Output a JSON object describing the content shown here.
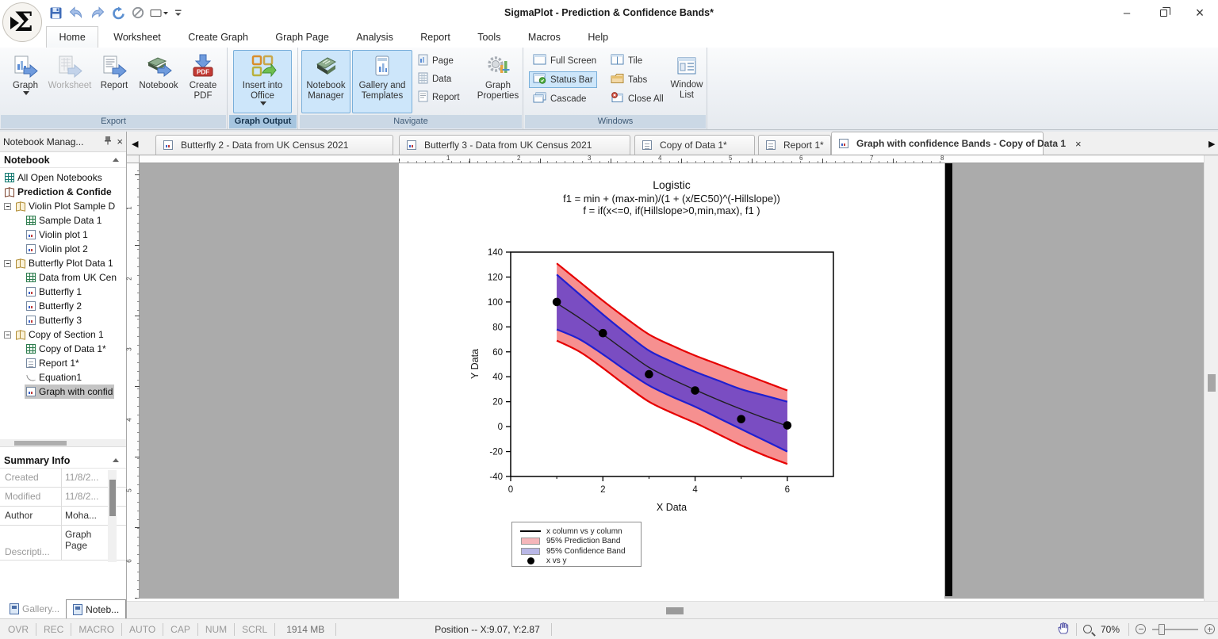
{
  "titlebar": {
    "title": "SigmaPlot - Prediction & Confidence Bands*"
  },
  "icons": {
    "minimize": "–",
    "close": "×",
    "back": "◀",
    "forward": "▶",
    "logo": "Σ",
    "tab_close": "×"
  },
  "ribbon": {
    "tabs": [
      "Home",
      "Worksheet",
      "Create Graph",
      "Graph Page",
      "Analysis",
      "Report",
      "Tools",
      "Macros",
      "Help"
    ],
    "export": {
      "label": "Export",
      "graph": "Graph",
      "worksheet": "Worksheet",
      "report": "Report",
      "notebook": "Notebook",
      "create_pdf": "Create PDF"
    },
    "graph_output": {
      "label": "Graph Output",
      "insert_into_office": "Insert into Office"
    },
    "navigate": {
      "label": "Navigate",
      "notebook_manager": "Notebook Manager",
      "gallery": "Gallery and Templates",
      "page": "Page",
      "data": "Data",
      "report": "Report",
      "graph_properties": "Graph Properties"
    },
    "windows": {
      "label": "Windows",
      "full_screen": "Full Screen",
      "tile": "Tile",
      "status_bar": "Status Bar",
      "tabs": "Tabs",
      "cascade": "Cascade",
      "close_all": "Close All",
      "window_list": "Window List"
    }
  },
  "doc_tabs": [
    "Butterfly 2 - Data from UK Census 2021",
    "Butterfly 3 - Data from UK Census 2021",
    "Copy of Data 1*",
    "Report 1*",
    "Graph with confidence Bands - Copy of Data 1"
  ],
  "notebook_panel": {
    "title": "Notebook Manag...",
    "section": "Notebook",
    "items": [
      {
        "label": "All Open Notebooks"
      },
      {
        "label": "Prediction & Confide"
      },
      {
        "label": "Violin Plot Sample D"
      },
      {
        "label": "Sample Data 1"
      },
      {
        "label": "Violin plot 1"
      },
      {
        "label": "Violin plot 2"
      },
      {
        "label": "Butterfly Plot Data 1"
      },
      {
        "label": "Data from UK Cen"
      },
      {
        "label": "Butterfly 1"
      },
      {
        "label": "Butterfly 2"
      },
      {
        "label": "Butterfly 3"
      },
      {
        "label": "Copy of Section 1"
      },
      {
        "label": "Copy of Data 1*"
      },
      {
        "label": "Report 1*"
      },
      {
        "label": "Equation1"
      },
      {
        "label": "Graph with confid"
      }
    ]
  },
  "summary_info": {
    "title": "Summary Info",
    "rows": [
      {
        "label": "Created",
        "value": "11/8/2..."
      },
      {
        "label": "Modified",
        "value": "11/8/2..."
      },
      {
        "label": "Author",
        "value": "Moha..."
      },
      {
        "label": "Descripti...",
        "value": "Graph Page"
      }
    ]
  },
  "panel_tabs": {
    "gallery": "Gallery...",
    "notebook": "Noteb..."
  },
  "ruler": {
    "h_numbers": [
      "1",
      "2",
      "3",
      "4",
      "5",
      "6",
      "7",
      "8"
    ],
    "v_numbers": [
      "1",
      "2",
      "3",
      "4",
      "5",
      "6"
    ]
  },
  "status_bar": {
    "toggles": [
      "OVR",
      "REC",
      "MACRO",
      "AUTO",
      "CAP",
      "NUM",
      "SCRL"
    ],
    "memory": "1914 MB",
    "position": "Position -- X:9.07, Y:2.87",
    "zoom": "70%"
  },
  "chart_data": {
    "type": "line",
    "title": "Logistic",
    "eq1": "f1 = min + (max-min)/(1 + (x/EC50)^(-Hillslope))",
    "eq2": "f = if(x<=0, if(Hillslope>0,min,max), f1 )",
    "xlabel": "X Data",
    "ylabel": "Y Data",
    "xlim": [
      0,
      7
    ],
    "ylim": [
      -40,
      140
    ],
    "xticks": [
      0,
      2,
      4,
      6
    ],
    "xminor": [
      1,
      3,
      5
    ],
    "yticks": [
      -40,
      -20,
      0,
      20,
      40,
      60,
      80,
      100,
      120,
      140
    ],
    "grid": false,
    "legend_position": "bottom-left",
    "points": {
      "x": [
        1,
        2,
        3,
        4,
        5,
        6
      ],
      "y": [
        100,
        75,
        42,
        29,
        6,
        1
      ]
    },
    "band_x": [
      1,
      1.5,
      2,
      2.5,
      3,
      3.5,
      4,
      4.5,
      5,
      5.5,
      6
    ],
    "fit": [
      99,
      87,
      74,
      60.5,
      47.5,
      38,
      29.5,
      21.5,
      14,
      7,
      0.5
    ],
    "conf_upper": [
      122,
      106,
      90,
      75,
      61,
      52,
      44,
      37,
      30,
      25,
      20
    ],
    "conf_lower": [
      78,
      70,
      58,
      45,
      33,
      24,
      16,
      7,
      -2,
      -11,
      -20
    ],
    "pred_upper": [
      131,
      116,
      101,
      87,
      74,
      65,
      57,
      50,
      43,
      36,
      29
    ],
    "pred_lower": [
      69,
      60,
      47,
      33,
      20,
      11,
      3,
      -6,
      -15,
      -23,
      -30
    ],
    "legend": [
      {
        "type": "line",
        "color": "#000000",
        "label": "x column vs y column"
      },
      {
        "type": "fill",
        "color": "#f5b6ba",
        "label": "95% Prediction Band"
      },
      {
        "type": "fill",
        "color": "#b9b7e6",
        "label": "95% Confidence Band"
      },
      {
        "type": "marker",
        "color": "#000000",
        "label": "x vs y"
      }
    ],
    "colors": {
      "pred_fill": "#f69090",
      "pred_edge": "#e60000",
      "conf_fill": "#7a4dc2",
      "conf_edge": "#2020d0",
      "fit": "#202020",
      "marker": "#000000"
    }
  }
}
